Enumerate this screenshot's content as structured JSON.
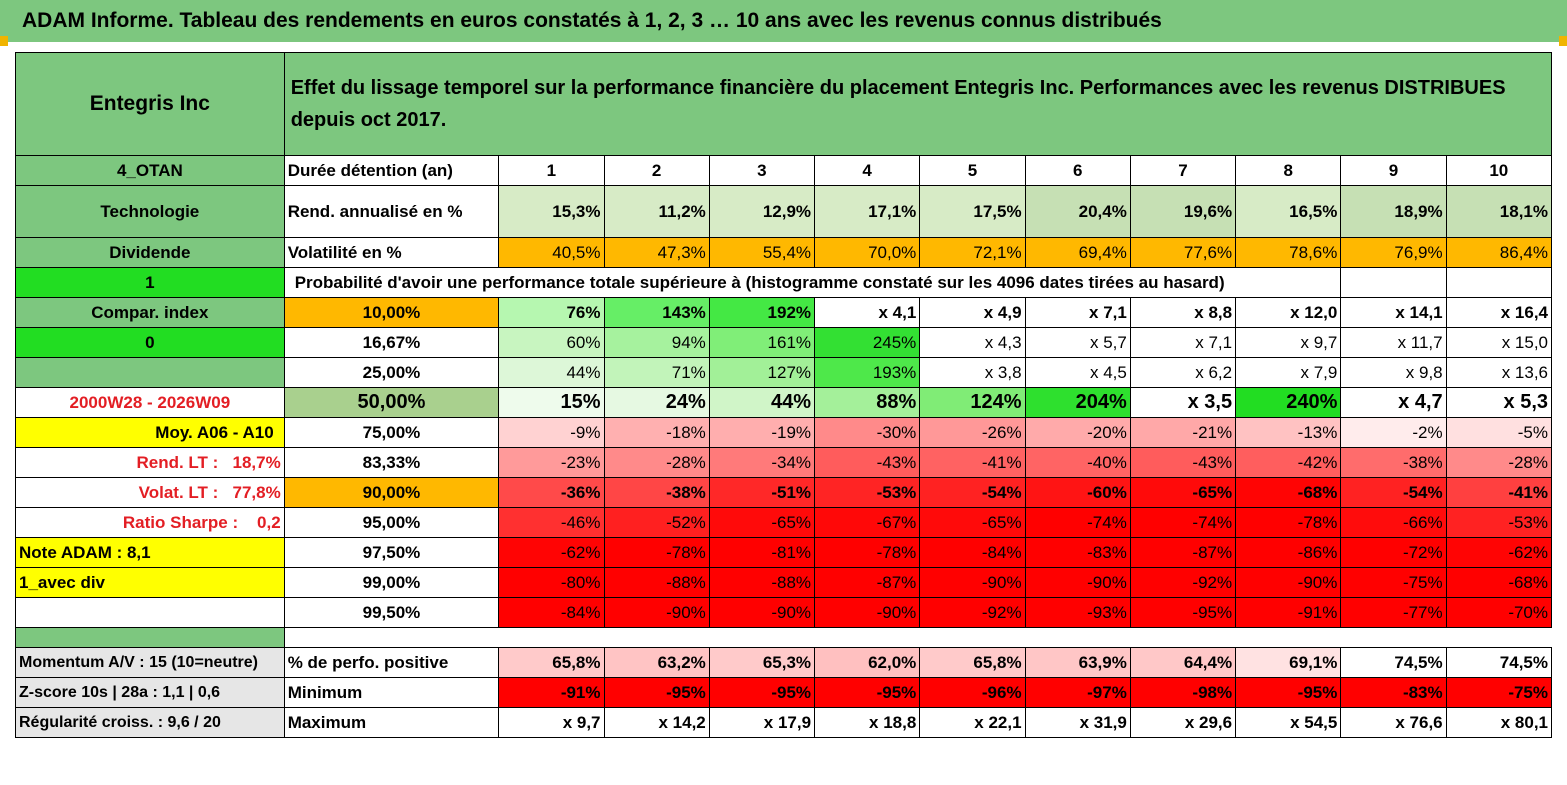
{
  "title": "ADAM Informe. Tableau des rendements en euros constatés à 1, 2, 3 … 10 ans avec les revenus connus distribués",
  "header": {
    "company": "Entegris Inc",
    "description": "Effet du lissage temporel sur la performance financière du placement Entegris Inc. Performances avec les revenus DISTRIBUES depuis oct 2017."
  },
  "left_labels": {
    "code": "4_OTAN",
    "sector": "Technologie",
    "type": "Dividende",
    "value_one": "1",
    "compar_index": "Compar. index",
    "value_zero": "0",
    "period": "2000W28 - 2026W09",
    "moy": "Moy. A06 - A10",
    "rend_lt_label": "Rend. LT :",
    "rend_lt_value": "18,7%",
    "volat_lt_label": "Volat. LT :",
    "volat_lt_value": "77,8%",
    "sharpe_label": "Ratio Sharpe :",
    "sharpe_value": "0,2",
    "note_adam": "Note ADAM : 8,1",
    "avec_div": "1_avec div",
    "momentum": "Momentum A/V : 15 (10=neutre)",
    "zscore": "Z-score 10s | 28a : 1,1 | 0,6",
    "regularite": "Régularité croiss. : 9,6 / 20"
  },
  "row_labels": {
    "duree": "Durée détention (an)",
    "rend": "Rend. annualisé en %",
    "volat": "Volatilité en %",
    "proba": "Probabilité d'avoir une performance totale supérieure à (histogramme constaté sur les 4096 dates tirées au hasard)",
    "positive": "% de perfo. positive",
    "minimum": "Minimum",
    "maximum": "Maximum"
  },
  "years": [
    "1",
    "2",
    "3",
    "4",
    "5",
    "6",
    "7",
    "8",
    "9",
    "10"
  ],
  "rend": [
    "15,3%",
    "11,2%",
    "12,9%",
    "17,1%",
    "17,5%",
    "20,4%",
    "19,6%",
    "16,5%",
    "18,9%",
    "18,1%"
  ],
  "volat": [
    "40,5%",
    "47,3%",
    "55,4%",
    "70,0%",
    "72,1%",
    "69,4%",
    "77,6%",
    "78,6%",
    "76,9%",
    "86,4%"
  ],
  "proba_rows": [
    {
      "pct": "10,00%",
      "values": [
        "76%",
        "143%",
        "192%",
        "x 4,1",
        "x 4,9",
        "x 7,1",
        "x 8,8",
        "x 12,0",
        "x 14,1",
        "x 16,4"
      ]
    },
    {
      "pct": "16,67%",
      "values": [
        "60%",
        "94%",
        "161%",
        "245%",
        "x 4,3",
        "x 5,7",
        "x 7,1",
        "x 9,7",
        "x 11,7",
        "x 15,0"
      ]
    },
    {
      "pct": "25,00%",
      "values": [
        "44%",
        "71%",
        "127%",
        "193%",
        "x 3,8",
        "x 4,5",
        "x 6,2",
        "x 7,9",
        "x 9,8",
        "x 13,6"
      ]
    },
    {
      "pct": "50,00%",
      "values": [
        "15%",
        "24%",
        "44%",
        "88%",
        "124%",
        "204%",
        "x 3,5",
        "240%",
        "x 4,7",
        "x 5,3"
      ]
    },
    {
      "pct": "75,00%",
      "values": [
        "-9%",
        "-18%",
        "-19%",
        "-30%",
        "-26%",
        "-20%",
        "-21%",
        "-13%",
        "-2%",
        "-5%"
      ]
    },
    {
      "pct": "83,33%",
      "values": [
        "-23%",
        "-28%",
        "-34%",
        "-43%",
        "-41%",
        "-40%",
        "-43%",
        "-42%",
        "-38%",
        "-28%"
      ]
    },
    {
      "pct": "90,00%",
      "values": [
        "-36%",
        "-38%",
        "-51%",
        "-53%",
        "-54%",
        "-60%",
        "-65%",
        "-68%",
        "-54%",
        "-41%"
      ]
    },
    {
      "pct": "95,00%",
      "values": [
        "-46%",
        "-52%",
        "-65%",
        "-67%",
        "-65%",
        "-74%",
        "-74%",
        "-78%",
        "-66%",
        "-53%"
      ]
    },
    {
      "pct": "97,50%",
      "values": [
        "-62%",
        "-78%",
        "-81%",
        "-78%",
        "-84%",
        "-83%",
        "-87%",
        "-86%",
        "-72%",
        "-62%"
      ]
    },
    {
      "pct": "99,00%",
      "values": [
        "-80%",
        "-88%",
        "-88%",
        "-87%",
        "-90%",
        "-90%",
        "-92%",
        "-90%",
        "-75%",
        "-68%"
      ]
    },
    {
      "pct": "99,50%",
      "values": [
        "-84%",
        "-90%",
        "-90%",
        "-90%",
        "-92%",
        "-93%",
        "-95%",
        "-91%",
        "-77%",
        "-70%"
      ]
    }
  ],
  "positive": [
    "65,8%",
    "63,2%",
    "65,3%",
    "62,0%",
    "65,8%",
    "63,9%",
    "64,4%",
    "69,1%",
    "74,5%",
    "74,5%"
  ],
  "minimum": [
    "-91%",
    "-95%",
    "-95%",
    "-95%",
    "-96%",
    "-97%",
    "-98%",
    "-95%",
    "-83%",
    "-75%"
  ],
  "maximum": [
    "x 9,7",
    "x 14,2",
    "x 17,9",
    "x 18,8",
    "x 22,1",
    "x 31,9",
    "x 29,6",
    "x 54,5",
    "x 76,6",
    "x 80,1"
  ],
  "colors": {
    "header_green": "#7dc77f",
    "bright_green": "#22dd22",
    "orange": "#ffb800",
    "yellow": "#ffff00",
    "red": "#ff0000",
    "label_red": "#e31e24"
  }
}
